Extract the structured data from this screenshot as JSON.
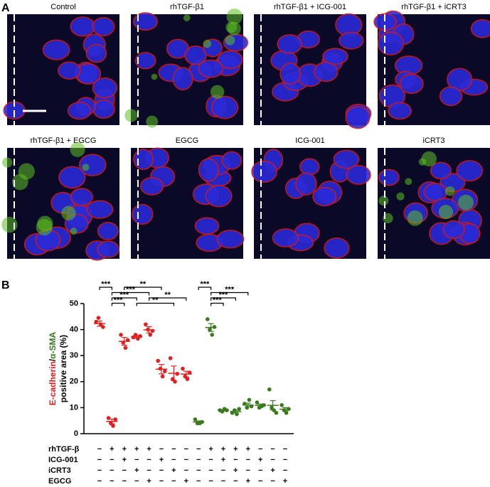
{
  "panel_a": {
    "label": "A",
    "images": [
      "Control",
      "rhTGF-β1",
      "rhTGF-β1 + ICG-001",
      "rhTGF-β1 + iCRT3",
      "rhTGF-β1 + EGCG",
      "EGCG",
      "ICG-001",
      "iCRT3"
    ]
  },
  "chart_data": {
    "type": "dot",
    "panel_label": "B",
    "ylabel_separator": "/",
    "ylabel_second_line": "positive area (%)",
    "ylim": [
      0,
      50
    ],
    "yticks": [
      0,
      10,
      20,
      30,
      40,
      50
    ],
    "series": [
      {
        "name": "E-cadherin",
        "color": "#e02020",
        "values": [
          42.3,
          4.7,
          35.5,
          37.2,
          39.9,
          24.8,
          23.2,
          22.9
        ],
        "errors": [
          1,
          0.9,
          1.5,
          0.5,
          1.2,
          1.8,
          2.8,
          1.1
        ],
        "points": [
          [
            43,
            44.5,
            42,
            41
          ],
          [
            6,
            4,
            3,
            5.5
          ],
          [
            38,
            35,
            33,
            36
          ],
          [
            37,
            38,
            36.5,
            37.5
          ],
          [
            42,
            40,
            38,
            39.5
          ],
          [
            28,
            25,
            22,
            24
          ],
          [
            29,
            21,
            20,
            23
          ],
          [
            25,
            22,
            21,
            23.5
          ]
        ]
      },
      {
        "name": "α-SMA",
        "color": "#3a7a1e",
        "values": [
          4.5,
          40.8,
          9,
          8.5,
          11,
          10.9,
          10.9,
          9.4
        ],
        "errors": [
          0.4,
          1.5,
          0.3,
          0.5,
          0.7,
          0.5,
          1.8,
          0.6
        ],
        "points": [
          [
            5.5,
            4,
            4,
            4.5
          ],
          [
            44,
            40,
            38,
            41
          ],
          [
            9,
            8.5,
            9.5,
            9
          ],
          [
            8,
            9,
            7.5,
            9.5
          ],
          [
            11.5,
            10,
            13,
            10.5
          ],
          [
            12,
            10,
            10.5,
            11
          ],
          [
            17,
            10,
            9,
            8
          ],
          [
            11,
            9,
            8,
            9.5
          ]
        ]
      }
    ],
    "conditions": [
      {
        "name": "rhTGF-β",
        "signs": [
          "−",
          "+",
          "+",
          "+",
          "+",
          "−",
          "−",
          "−",
          "−",
          "+",
          "+",
          "+",
          "+",
          "−",
          "−",
          "−"
        ]
      },
      {
        "name": "ICG-001",
        "signs": [
          "−",
          "−",
          "+",
          "−",
          "−",
          "+",
          "−",
          "−",
          "−",
          "−",
          "+",
          "−",
          "−",
          "+",
          "−",
          "−"
        ]
      },
      {
        "name": "iCRT3",
        "signs": [
          "−",
          "−",
          "−",
          "+",
          "−",
          "−",
          "+",
          "−",
          "−",
          "−",
          "−",
          "+",
          "−",
          "−",
          "+",
          "−"
        ]
      },
      {
        "name": "EGCG",
        "signs": [
          "−",
          "−",
          "−",
          "−",
          "+",
          "−",
          "−",
          "+",
          "−",
          "−",
          "−",
          "−",
          "+",
          "−",
          "−",
          "+"
        ]
      }
    ],
    "comparisons": [
      {
        "groups": [
          0,
          1
        ],
        "label": "***"
      },
      {
        "groups": [
          1,
          4
        ],
        "label": "***"
      },
      {
        "groups": [
          1,
          3
        ],
        "label": "***"
      },
      {
        "groups": [
          1,
          2
        ],
        "label": "***"
      },
      {
        "groups": [
          2,
          5
        ],
        "label": "**"
      },
      {
        "groups": [
          3,
          6
        ],
        "label": "**"
      },
      {
        "groups": [
          4,
          7
        ],
        "label": "**"
      },
      {
        "groups": [
          8,
          9
        ],
        "label": "***"
      },
      {
        "groups": [
          9,
          12
        ],
        "label": "***"
      },
      {
        "groups": [
          9,
          11
        ],
        "label": "***"
      },
      {
        "groups": [
          9,
          10
        ],
        "label": "***"
      }
    ]
  }
}
